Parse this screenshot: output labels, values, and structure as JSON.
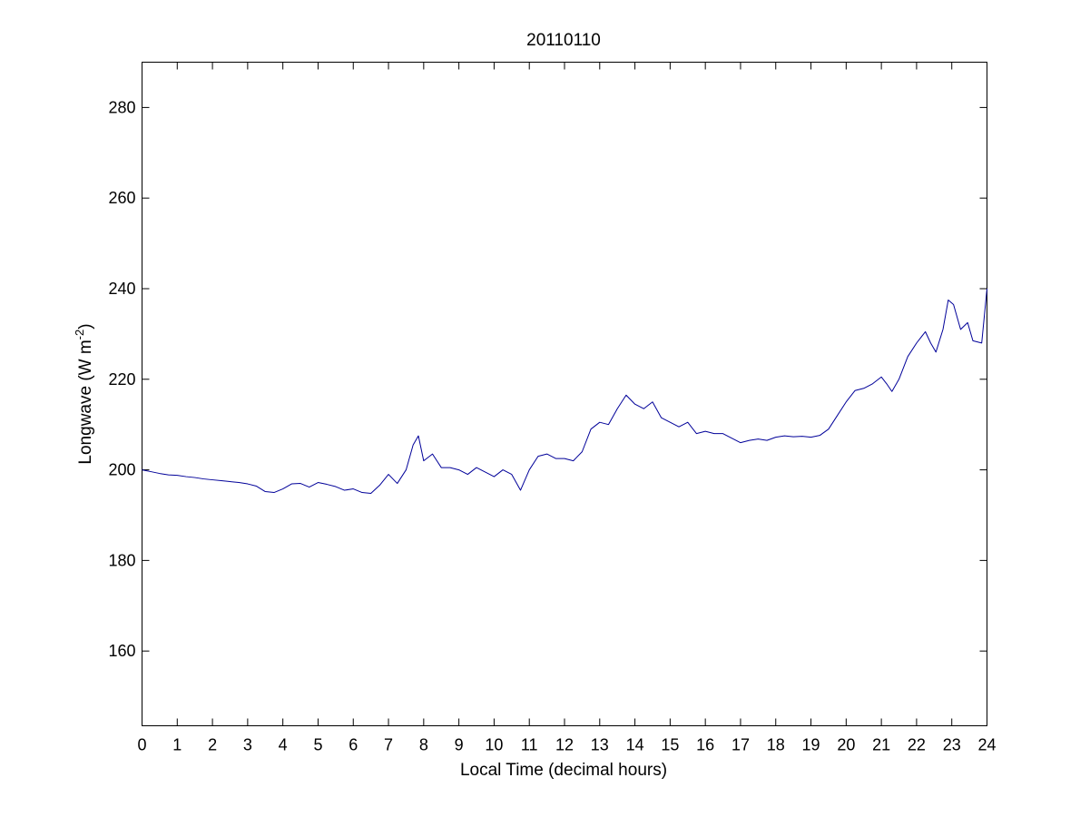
{
  "figure": {
    "background": "#ffffff"
  },
  "chart_data": {
    "type": "line",
    "title": "20110110",
    "xlabel": "Local Time (decimal hours)",
    "ylabel": {
      "main": "Longwave (W m",
      "superscript": "-2",
      "suffix": ")"
    },
    "xlim": [
      0,
      24
    ],
    "ylim": [
      143.5,
      290
    ],
    "xticks": [
      0,
      1,
      2,
      3,
      4,
      5,
      6,
      7,
      8,
      9,
      10,
      11,
      12,
      13,
      14,
      15,
      16,
      17,
      18,
      19,
      20,
      21,
      22,
      23,
      24
    ],
    "xtick_labels": [
      "0",
      "1",
      "2",
      "3",
      "4",
      "5",
      "6",
      "7",
      "8",
      "9",
      "10",
      "11",
      "12",
      "13",
      "14",
      "15",
      "16",
      "17",
      "18",
      "19",
      "20",
      "21",
      "22",
      "23",
      "24"
    ],
    "yticks": [
      160,
      180,
      200,
      220,
      240,
      260,
      280
    ],
    "ytick_labels": [
      "160",
      "180",
      "200",
      "220",
      "240",
      "260",
      "280"
    ],
    "grid": false,
    "legend": false,
    "series": [
      {
        "color": "#000099",
        "points": [
          [
            0.0,
            200.0
          ],
          [
            0.25,
            199.6
          ],
          [
            0.5,
            199.2
          ],
          [
            0.75,
            198.9
          ],
          [
            1.0,
            198.8
          ],
          [
            1.25,
            198.5
          ],
          [
            1.5,
            198.3
          ],
          [
            1.75,
            198.0
          ],
          [
            2.0,
            197.8
          ],
          [
            2.25,
            197.6
          ],
          [
            2.5,
            197.4
          ],
          [
            2.75,
            197.2
          ],
          [
            3.0,
            196.9
          ],
          [
            3.25,
            196.4
          ],
          [
            3.5,
            195.2
          ],
          [
            3.75,
            195.0
          ],
          [
            4.0,
            195.8
          ],
          [
            4.25,
            196.9
          ],
          [
            4.5,
            197.0
          ],
          [
            4.75,
            196.2
          ],
          [
            5.0,
            197.2
          ],
          [
            5.25,
            196.8
          ],
          [
            5.5,
            196.3
          ],
          [
            5.75,
            195.5
          ],
          [
            6.0,
            195.8
          ],
          [
            6.25,
            195.0
          ],
          [
            6.5,
            194.8
          ],
          [
            6.75,
            196.6
          ],
          [
            7.0,
            199.0
          ],
          [
            7.25,
            197.0
          ],
          [
            7.5,
            200.0
          ],
          [
            7.7,
            205.5
          ],
          [
            7.85,
            207.5
          ],
          [
            8.0,
            202.0
          ],
          [
            8.25,
            203.5
          ],
          [
            8.5,
            200.5
          ],
          [
            8.75,
            200.5
          ],
          [
            9.0,
            200.0
          ],
          [
            9.25,
            199.0
          ],
          [
            9.5,
            200.5
          ],
          [
            9.75,
            199.5
          ],
          [
            10.0,
            198.5
          ],
          [
            10.25,
            200.0
          ],
          [
            10.5,
            199.0
          ],
          [
            10.75,
            195.5
          ],
          [
            11.0,
            200.0
          ],
          [
            11.25,
            203.0
          ],
          [
            11.5,
            203.5
          ],
          [
            11.75,
            202.5
          ],
          [
            12.0,
            202.5
          ],
          [
            12.25,
            202.0
          ],
          [
            12.5,
            204.0
          ],
          [
            12.75,
            209.0
          ],
          [
            13.0,
            210.5
          ],
          [
            13.25,
            210.0
          ],
          [
            13.5,
            213.5
          ],
          [
            13.75,
            216.5
          ],
          [
            14.0,
            214.5
          ],
          [
            14.25,
            213.5
          ],
          [
            14.5,
            215.0
          ],
          [
            14.75,
            211.5
          ],
          [
            15.0,
            210.5
          ],
          [
            15.25,
            209.5
          ],
          [
            15.5,
            210.5
          ],
          [
            15.75,
            208.0
          ],
          [
            16.0,
            208.5
          ],
          [
            16.25,
            208.0
          ],
          [
            16.5,
            208.0
          ],
          [
            16.75,
            207.0
          ],
          [
            17.0,
            206.0
          ],
          [
            17.25,
            206.5
          ],
          [
            17.5,
            206.8
          ],
          [
            17.75,
            206.5
          ],
          [
            18.0,
            207.2
          ],
          [
            18.25,
            207.5
          ],
          [
            18.5,
            207.3
          ],
          [
            18.75,
            207.4
          ],
          [
            19.0,
            207.2
          ],
          [
            19.25,
            207.6
          ],
          [
            19.5,
            209.0
          ],
          [
            19.75,
            212.0
          ],
          [
            20.0,
            215.0
          ],
          [
            20.25,
            217.5
          ],
          [
            20.5,
            218.0
          ],
          [
            20.75,
            219.0
          ],
          [
            21.0,
            220.5
          ],
          [
            21.15,
            219.0
          ],
          [
            21.3,
            217.3
          ],
          [
            21.5,
            220.0
          ],
          [
            21.75,
            225.0
          ],
          [
            22.0,
            228.0
          ],
          [
            22.25,
            230.5
          ],
          [
            22.4,
            228.0
          ],
          [
            22.55,
            226.0
          ],
          [
            22.75,
            231.0
          ],
          [
            22.9,
            237.5
          ],
          [
            23.05,
            236.5
          ],
          [
            23.25,
            231.0
          ],
          [
            23.45,
            232.5
          ],
          [
            23.6,
            228.5
          ],
          [
            23.85,
            228.0
          ],
          [
            24.0,
            240.0
          ]
        ]
      }
    ]
  }
}
